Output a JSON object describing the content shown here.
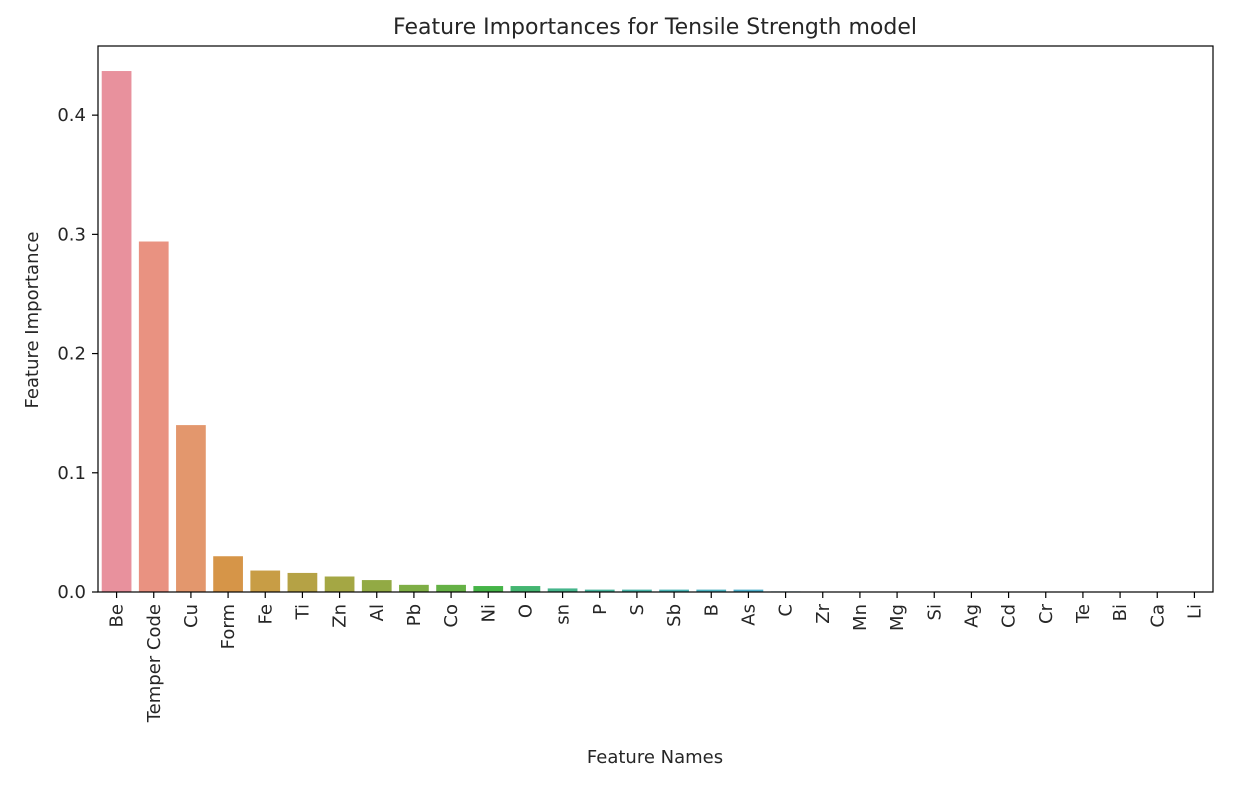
{
  "chart_data": {
    "type": "bar",
    "title": "Feature Importances for Tensile Strength model",
    "xlabel": "Feature Names",
    "ylabel": "Feature Importance",
    "ylim": [
      0,
      0.458
    ],
    "yticks": [
      0.0,
      0.1,
      0.2,
      0.3,
      0.4
    ],
    "ytick_labels": [
      "0.0",
      "0.1",
      "0.2",
      "0.3",
      "0.4"
    ],
    "grid": false,
    "legend": "none",
    "categories": [
      "Be",
      "Temper Code",
      "Cu",
      "Form",
      "Fe",
      "Ti",
      "Zn",
      "Al",
      "Pb",
      "Co",
      "Ni",
      "O",
      "sn",
      "P",
      "S",
      "Sb",
      "B",
      "As",
      "C",
      "Zr",
      "Mn",
      "Mg",
      "Si",
      "Ag",
      "Cd",
      "Cr",
      "Te",
      "Bi",
      "Ca",
      "Li"
    ],
    "values": [
      0.437,
      0.294,
      0.14,
      0.03,
      0.018,
      0.016,
      0.013,
      0.01,
      0.006,
      0.006,
      0.005,
      0.005,
      0.003,
      0.002,
      0.002,
      0.002,
      0.002,
      0.002,
      0.0005,
      0.0004,
      0.0003,
      0.0003,
      0.0002,
      0.0002,
      0.0001,
      0.0001,
      0.0001,
      0.0001,
      0.0001,
      0.0001
    ],
    "colors": [
      "#e8919d",
      "#e99281",
      "#e3976d",
      "#d69548",
      "#c89d45",
      "#b5a245",
      "#a4a744",
      "#92aa44",
      "#7eae45",
      "#65b145",
      "#45b447",
      "#44b571",
      "#45b58b",
      "#46b49b",
      "#47b4a7",
      "#48b3b3",
      "#4ab1be",
      "#4daeca",
      "#56aad6",
      "#6ba4e3",
      "#8c9cea",
      "#a994ea",
      "#bc8ceb",
      "#cc84eb",
      "#dc7de4",
      "#e57fd6",
      "#e984c8",
      "#eb87bb",
      "#eb8bae",
      "#ea8fa1"
    ]
  }
}
